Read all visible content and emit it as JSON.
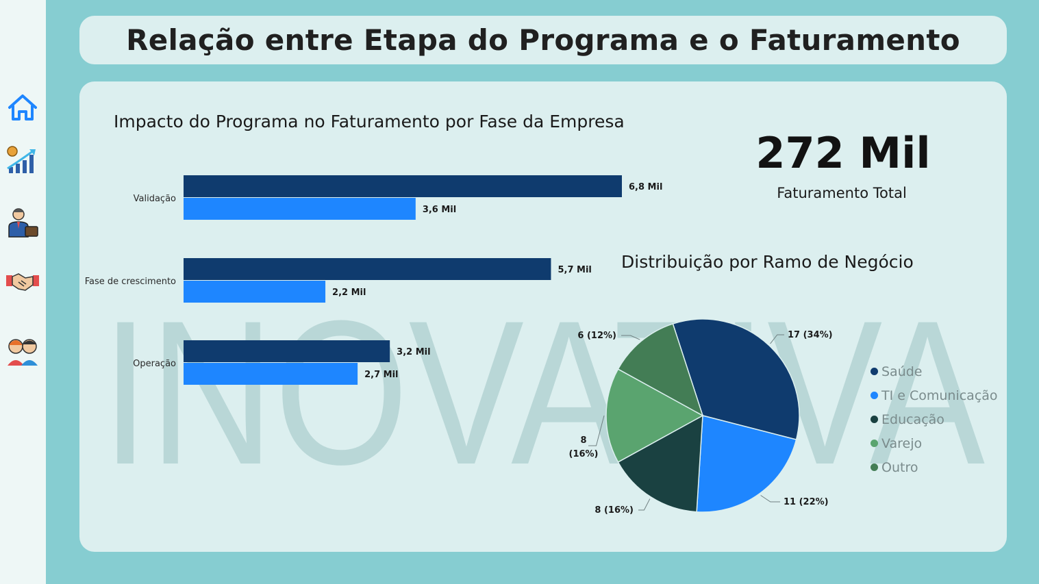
{
  "header": {
    "title": "Relação entre Etapa do Programa e o Faturamento"
  },
  "sidebar": {
    "items": [
      {
        "icon": "home-icon"
      },
      {
        "icon": "growth-chart-icon"
      },
      {
        "icon": "businessman-icon"
      },
      {
        "icon": "handshake-icon"
      },
      {
        "icon": "team-icon"
      }
    ]
  },
  "watermark": {
    "text": "INOVATIVA"
  },
  "kpi": {
    "value": "272 Mil",
    "label": "Faturamento Total"
  },
  "colors": {
    "accent": "#1e86ff",
    "navy": "#0f3b6e",
    "dark_green": "#1a4141",
    "green": "#5aa46f",
    "mid_green": "#437d55",
    "background": "#86cdd1",
    "card": "#dcefef"
  },
  "chart_data": [
    {
      "type": "bar",
      "orientation": "horizontal",
      "title": "Impacto do Programa no Faturamento por Fase da Empresa",
      "categories": [
        "Validação",
        "Fase de crescimento",
        "Operação"
      ],
      "series": [
        {
          "values": [
            6.8,
            5.7,
            3.2
          ],
          "labels": [
            "6,8 Mil",
            "5,7 Mil",
            "3,2 Mil"
          ],
          "color": "#0f3b6e"
        },
        {
          "values": [
            3.6,
            2.2,
            2.7
          ],
          "labels": [
            "3,6 Mil",
            "2,2 Mil",
            "2,7 Mil"
          ],
          "color": "#1e86ff"
        }
      ],
      "xlim": [
        0,
        7.2
      ]
    },
    {
      "type": "pie",
      "title": "Distribuição por Ramo de Negócio",
      "slices": [
        {
          "label": "Saúde",
          "value": 17,
          "data_label": "17 (34%)",
          "color": "#0f3b6e"
        },
        {
          "label": "TI e Comunicação",
          "value": 11,
          "data_label": "11 (22%)",
          "color": "#1e86ff"
        },
        {
          "label": "Educação",
          "value": 8,
          "data_label": "8 (16%)",
          "color": "#1a4141"
        },
        {
          "label": "Varejo",
          "value": 8,
          "data_label": "8 (16%)",
          "color": "#5aa46f"
        },
        {
          "label": "Outro",
          "value": 6,
          "data_label": "6 (12%)",
          "color": "#437d55"
        }
      ],
      "legend_position": "right"
    }
  ]
}
